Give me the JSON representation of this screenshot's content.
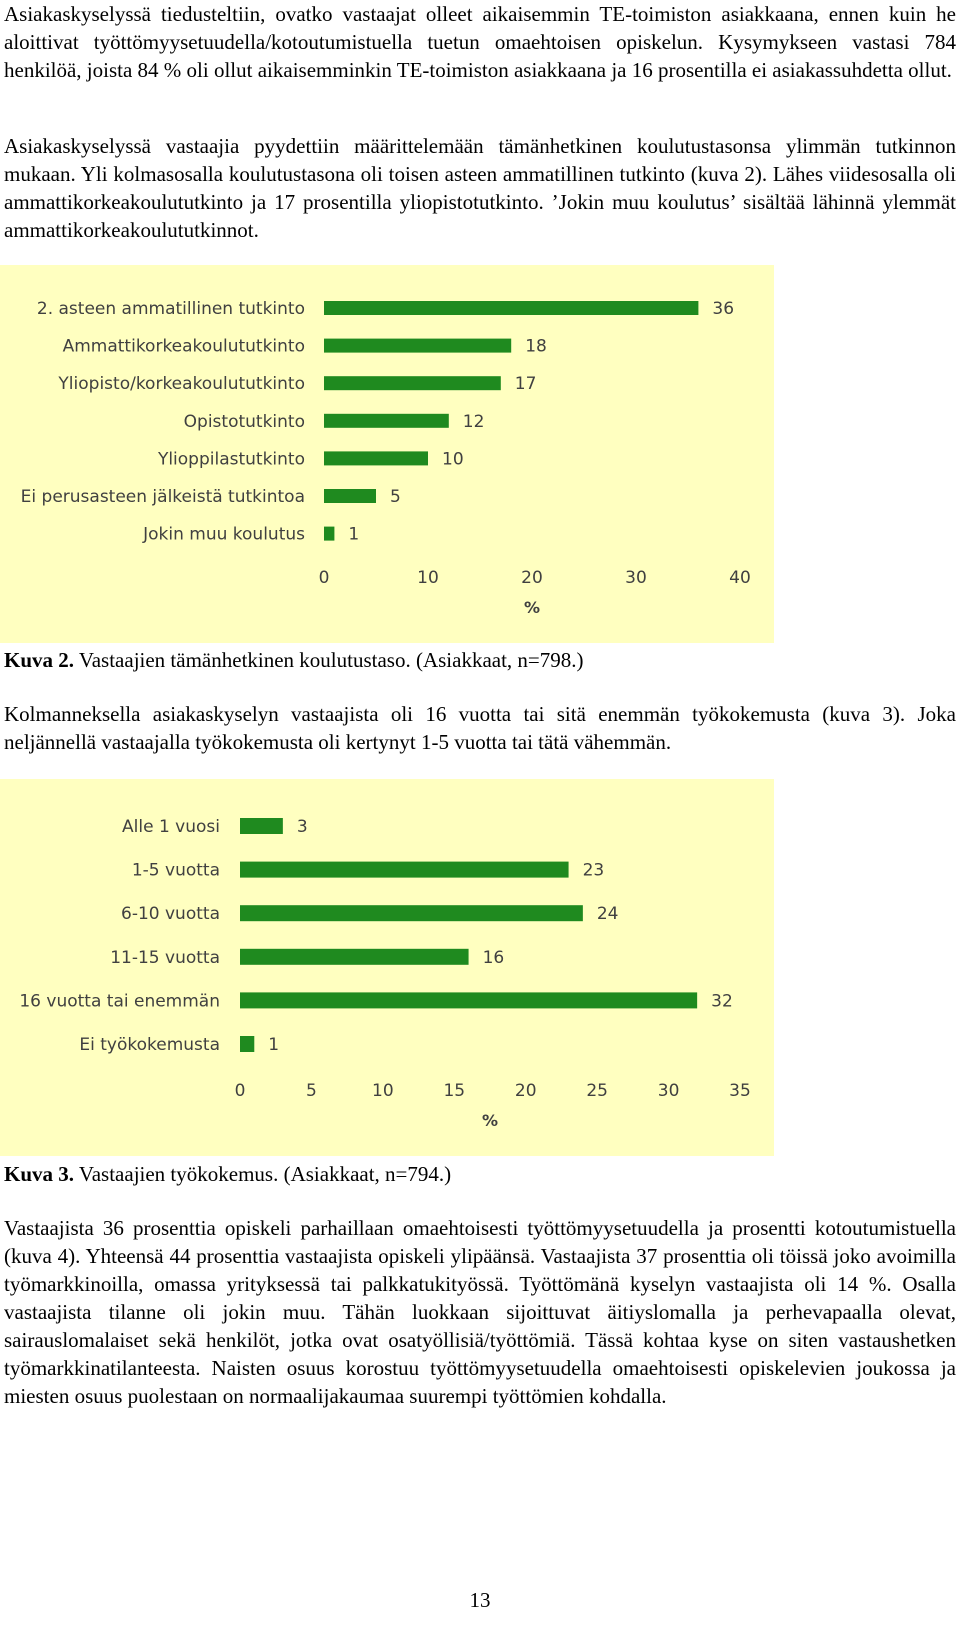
{
  "paragraphs": {
    "p1": "Asiakaskyselyssä tiedusteltiin, ovatko vastaajat olleet aikaisemmin TE-toimiston asiakkaana, ennen kuin he aloittivat työttömyysetuudella/kotoutumistuella tuetun omaehtoisen opiskelun. Kysymykseen vastasi 784 henkilöä, joista 84 % oli ollut aikaisemminkin TE-toimiston asiakkaana ja 16 prosentilla ei asiakassuhdetta ollut.",
    "p2": "Asiakaskyselyssä vastaajia pyydettiin määrittelemään tämänhetkinen koulutustasonsa ylimmän tutkinnon mukaan. Yli kolmasosalla koulutustasona oli toisen asteen ammatillinen tutkinto (kuva 2). Lähes viidesosalla oli ammattikorkeakoulututkinto ja 17 prosentilla yliopistotutkinto. ’Jokin muu koulutus’ sisältää lähinnä ylemmät ammattikorkeakoulututkinnot.",
    "p3": "Kolmanneksella asiakaskyselyn vastaajista oli 16 vuotta tai sitä enemmän työkokemusta (kuva 3). Joka neljännellä vastaajalla työkokemusta oli kertynyt 1-5 vuotta tai tätä vähemmän.",
    "p4": "Vastaajista 36 prosenttia opiskeli parhaillaan omaehtoisesti työttömyysetuudella ja prosentti kotoutumistuella (kuva 4). Yhteensä 44 prosenttia vastaajista opiskeli ylipäänsä. Vastaajista 37 prosenttia oli töissä joko avoimilla työmarkkinoilla, omassa yrityksessä tai palkkatukityössä. Työttömänä kyselyn vastaajista oli 14 %. Osalla vastaajista tilanne oli jokin muu. Tähän luokkaan sijoittuvat äitiyslomalla ja perhevapaalla olevat, sairauslomalaiset sekä henkilöt, jotka ovat osatyöllisiä/työttömiä. Tässä kohtaa kyse on siten vastaushetken työmarkkinatilanteesta. Naisten osuus korostuu työttömyysetuudella omaehtoisesti opiskelevien joukossa ja miesten osuus puolestaan on normaalijakaumaa suurempi työttömien kohdalla."
  },
  "captions": {
    "fig2_label": "Kuva 2.",
    "fig2_text": " Vastaajien tämänhetkinen koulutustaso. (Asiakkaat, n=798.)",
    "fig3_label": "Kuva 3.",
    "fig3_text": " Vastaajien työkokemus. (Asiakkaat, n=794.)"
  },
  "page_number": "13",
  "colors": {
    "bar": "#1f8a1f",
    "chart_background": "#ffffc0",
    "text": "#404040"
  },
  "chart_data": [
    {
      "type": "bar",
      "orientation": "horizontal",
      "categories": [
        "2. asteen ammatillinen tutkinto",
        "Ammattikorkeakoulututkinto",
        "Yliopisto/korkeakoulututkinto",
        "Opistotutkinto",
        "Ylioppilastutkinto",
        "Ei perusasteen jälkeistä tutkintoa",
        "Jokin muu koulutus"
      ],
      "values": [
        36,
        18,
        17,
        12,
        10,
        5,
        1
      ],
      "xlabel": "%",
      "xlim": [
        0,
        40
      ],
      "xticks": [
        "0",
        "10",
        "20",
        "30",
        "40"
      ],
      "grid": false,
      "data_labels": true
    },
    {
      "type": "bar",
      "orientation": "horizontal",
      "categories": [
        "Alle 1 vuosi",
        "1-5 vuotta",
        "6-10 vuotta",
        "11-15 vuotta",
        "16 vuotta tai enemmän",
        "Ei työkokemusta"
      ],
      "values": [
        3,
        23,
        24,
        16,
        32,
        1
      ],
      "xlabel": "%",
      "xlim": [
        0,
        35
      ],
      "xticks": [
        "0",
        "5",
        "10",
        "15",
        "20",
        "25",
        "30",
        "35"
      ],
      "grid": false,
      "data_labels": true
    }
  ]
}
